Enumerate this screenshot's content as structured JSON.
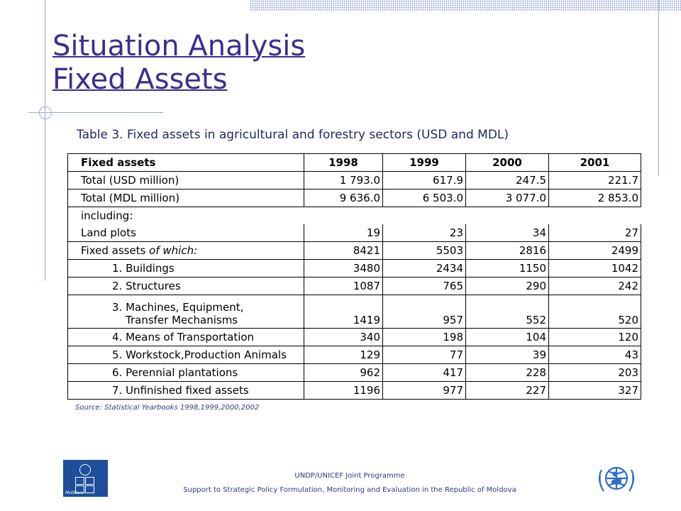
{
  "title": {
    "line1": "Situation Analysis",
    "line2": "Fixed Assets"
  },
  "table_caption": "Table 3. Fixed assets in agricultural and forestry sectors (USD and MDL)",
  "table": {
    "headers": [
      "Fixed assets",
      "1998",
      "1999",
      "2000",
      "2001"
    ],
    "rows": [
      {
        "label": "Total (USD million)",
        "values": [
          "1 793.0",
          "617.9",
          "247.5",
          "221.7"
        ]
      },
      {
        "label": "Total (MDL million)",
        "values": [
          "9 636.0",
          "6 503.0",
          "3 077.0",
          "2 853.0"
        ]
      },
      {
        "label": "including:",
        "values": [
          "",
          "",
          "",
          ""
        ]
      },
      {
        "label": "Land plots",
        "values": [
          "19",
          "23",
          "34",
          "27"
        ]
      },
      {
        "label": "Fixed assets",
        "label_italic": "of which:",
        "values": [
          "8421",
          "5503",
          "2816",
          "2499"
        ]
      },
      {
        "label": "1. Buildings",
        "values": [
          "3480",
          "2434",
          "1150",
          "1042"
        ]
      },
      {
        "label": "2. Structures",
        "values": [
          "1087",
          "765",
          "290",
          "242"
        ]
      },
      {
        "label": "3. Machines, Equipment,",
        "label_line2": "Transfer  Mechanisms",
        "values": [
          "1419",
          "957",
          "552",
          "520"
        ]
      },
      {
        "label": "4. Means of Transportation",
        "values": [
          "340",
          "198",
          "104",
          "120"
        ]
      },
      {
        "label": "5. Workstock,Production Animals",
        "values": [
          "129",
          "77",
          "39",
          "43"
        ]
      },
      {
        "label": "6. Perennial plantations",
        "values": [
          "962",
          "417",
          "228",
          "203"
        ]
      },
      {
        "label": "7. Unfinished fixed assets",
        "values": [
          "1196",
          "977",
          "227",
          "327"
        ]
      }
    ]
  },
  "source_note": "Source: Statistical Yearbooks 1998,1999,2000,2002",
  "footer": {
    "line1": "UNDP/UNICEF Joint Programme",
    "line2": "Support to Strategic Policy Formulation, Monitoring and Evaluation in the Republic of Moldova"
  },
  "logos": {
    "undp_letters": [
      "U",
      "N",
      "D",
      "P"
    ],
    "undp_caption": "Moldova"
  },
  "colors": {
    "title": "#3a2f8f",
    "accent_lines": "#9aa6d8",
    "undp_blue": "#1e4e9c",
    "unicef_blue": "#2d6fc4"
  }
}
